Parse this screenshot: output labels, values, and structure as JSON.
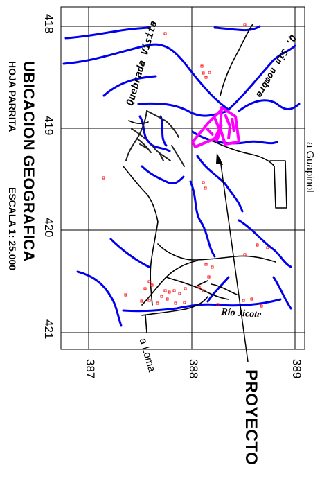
{
  "title": "UBICACION GEOGRAFICA",
  "subtitle_sheet": "HOJA PARRITA",
  "subtitle_scale": "ESCALA 1: 25.000",
  "project_label": "PROYECTO",
  "grid": {
    "northing_labels": [
      "418",
      "419",
      "420",
      "421"
    ],
    "easting_labels": [
      "387",
      "388",
      "389"
    ]
  },
  "place_labels": {
    "quebrada": "Quebrada Visita",
    "sin_nombre": "Q. Sin nombre",
    "rio": "Río Jicote",
    "guapinol": "a Guapinol",
    "loma": "a Loma"
  },
  "colors": {
    "river": "#0000ee",
    "road": "#000000",
    "project": "#ff00ff",
    "building": "#ff0000",
    "grid": "#000000"
  }
}
